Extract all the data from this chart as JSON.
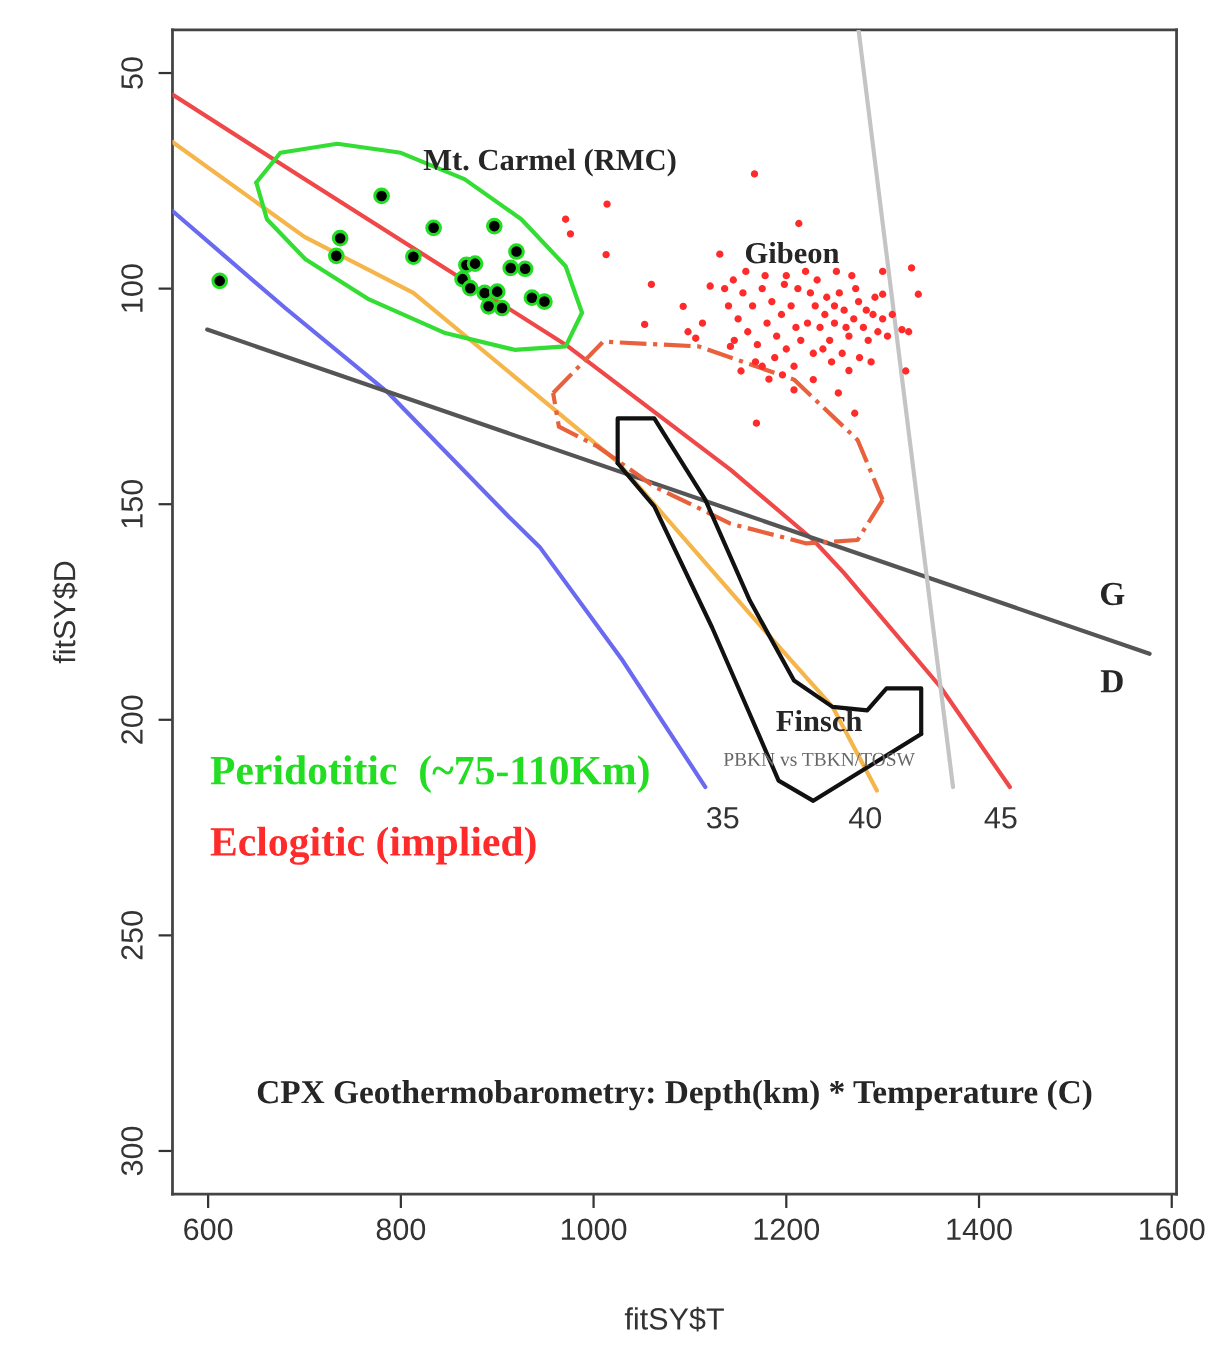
{
  "chart_data": {
    "type": "scatter",
    "xlabel": "fitSY$T",
    "ylabel": "fitSY$D",
    "xlim": [
      563,
      1605
    ],
    "ylim": [
      310,
      40
    ],
    "xticks": [
      600,
      800,
      1000,
      1200,
      1400,
      1600
    ],
    "yticks": [
      50,
      100,
      150,
      200,
      250,
      300
    ],
    "grid": false,
    "legend": "left",
    "series": [
      {
        "name": "Peridotitic  (~75-110Km)",
        "type": "scatter",
        "color": "#22dd22",
        "marker": "circle",
        "x": [
          612,
          780,
          737,
          733,
          834,
          813,
          897,
          920,
          914,
          929,
          868,
          877,
          864,
          872,
          887,
          900,
          891,
          905,
          936,
          949
        ],
        "values": [
          98.2,
          78.5,
          88.3,
          92.4,
          85.9,
          92.6,
          85.5,
          91.4,
          95.2,
          95.4,
          94.5,
          94.2,
          97.8,
          99.9,
          101.0,
          100.7,
          104.1,
          104.5,
          102.1,
          103.0
        ]
      },
      {
        "name": "Eclogitic (implied)",
        "type": "scatter",
        "color": "#ff2a2a",
        "marker": "circle",
        "x": [
          1167,
          1014,
          971,
          976,
          1013,
          1213,
          1131,
          1060,
          1121,
          1093,
          1330,
          1337,
          1300,
          1300,
          1098,
          1106,
          1053,
          1320,
          1327,
          1324,
          1169,
          1271,
          1254,
          1208,
          1228,
          1153,
          1175,
          1113,
          1142,
          1230,
          1240,
          1250,
          1260,
          1270,
          1280,
          1290,
          1245,
          1255,
          1265,
          1275,
          1285,
          1235,
          1225,
          1295,
          1250,
          1262,
          1272,
          1242,
          1283,
          1300,
          1310,
          1238,
          1258,
          1276,
          1222,
          1232,
          1268,
          1252,
          1292,
          1305,
          1215,
          1247,
          1265,
          1288,
          1228,
          1145,
          1155,
          1165,
          1175,
          1185,
          1195,
          1205,
          1150,
          1160,
          1170,
          1180,
          1190,
          1200,
          1210,
          1140,
          1158,
          1178,
          1198,
          1212,
          1168,
          1188,
          1146,
          1136,
          1208,
          1182,
          1196,
          1220,
          1200
        ],
        "values": [
          73.4,
          80.4,
          83.9,
          87.3,
          92.1,
          84.9,
          92.0,
          99.0,
          99.4,
          104.1,
          95.2,
          101.3,
          96.0,
          101.3,
          110.0,
          111.5,
          108.3,
          109.5,
          110.0,
          119.1,
          131.2,
          128.9,
          124.2,
          123.5,
          121.1,
          119.1,
          118.0,
          108.0,
          113.4,
          104,
          106,
          108,
          105,
          107,
          109,
          106,
          112,
          101,
          111,
          103,
          112,
          109,
          101,
          110,
          104,
          109,
          100,
          102,
          105,
          107,
          106,
          114,
          115,
          116,
          108,
          98,
          97,
          96,
          102,
          111,
          112,
          117,
          119,
          117,
          115,
          98,
          101,
          104,
          100,
          103,
          106,
          104,
          107,
          110,
          113,
          108,
          111,
          114,
          109,
          104,
          96,
          97,
          99,
          100,
          117,
          116,
          112,
          100,
          118,
          121,
          120,
          96,
          97
        ]
      },
      {
        "type": "line",
        "color": "#f04848",
        "marker": "none",
        "line_style": "solid",
        "x": [
          563,
          700,
          971,
          1142,
          1228,
          1260,
          1360,
          1432
        ],
        "values": [
          55,
          74.6,
          113,
          142,
          158.3,
          166,
          192.4,
          215.6
        ]
      },
      {
        "type": "line",
        "color": "#f5b54a",
        "marker": "none",
        "line_style": "solid",
        "x": [
          563,
          700,
          813,
          1024,
          1162,
          1248,
          1294
        ],
        "values": [
          66,
          88,
          101,
          140,
          175.4,
          197,
          216.4
        ]
      },
      {
        "type": "line",
        "color": "#6a6af0",
        "marker": "none",
        "line_style": "solid",
        "x": [
          563,
          680,
          787,
          912,
          944,
          1030,
          1116
        ],
        "values": [
          82,
          104.5,
          124.2,
          152.9,
          159.9,
          186.2,
          215.6
        ]
      },
      {
        "type": "line",
        "color": "#555555",
        "marker": "none",
        "line_style": "solid",
        "x": [
          599,
          1577
        ],
        "values": [
          109.5,
          184.7
        ]
      },
      {
        "type": "line",
        "color": "#c4c4c4",
        "marker": "none",
        "line_style": "solid",
        "x": [
          1275,
          1373
        ],
        "values": [
          40,
          215.6
        ]
      },
      {
        "type": "line",
        "color": "#33dd33",
        "marker": "none",
        "line_style": "solid",
        "x": [
          650,
          675,
          734,
          800,
          866,
          925,
          971,
          988
        ],
        "values": [
          75.4,
          68.5,
          66.4,
          68.5,
          74.6,
          83.9,
          94.8,
          105.6
        ]
      },
      {
        "type": "line",
        "color": "#33dd33",
        "marker": "none",
        "line_style": "solid",
        "x": [
          988,
          971,
          918,
          846,
          767,
          701,
          661,
          650
        ],
        "values": [
          105.6,
          113.4,
          114.2,
          110.3,
          102.5,
          93.2,
          83.9,
          75.4
        ]
      },
      {
        "type": "line",
        "color": "#e8603c",
        "marker": "none",
        "line_style": "dashed",
        "x": [
          958,
          1010,
          1109,
          1208,
          1274,
          1300
        ],
        "values": [
          124.2,
          112.3,
          113.4,
          121.1,
          135.1,
          149
        ]
      },
      {
        "type": "line",
        "color": "#e8603c",
        "marker": "none",
        "line_style": "dashed",
        "x": [
          1300,
          1274,
          1221,
          1142,
          1063,
          1004,
          964,
          958
        ],
        "values": [
          149,
          158.3,
          159.1,
          154.5,
          145.9,
          136.6,
          132,
          124.2
        ]
      },
      {
        "type": "line",
        "color": "#111111",
        "marker": "none",
        "line_style": "solid",
        "x": [
          1025,
          1025,
          1063,
          1116,
          1162,
          1208,
          1248,
          1284,
          1304,
          1340,
          1340
        ],
        "values": [
          140.5,
          130.1,
          130.1,
          149.0,
          172.3,
          190.9,
          197.0,
          197.8,
          192.7,
          192.7,
          203.3
        ]
      },
      {
        "type": "line",
        "color": "#111111",
        "marker": "none",
        "line_style": "solid",
        "x": [
          1340,
          1228,
          1192,
          1162,
          1123,
          1063,
          1025
        ],
        "values": [
          203.3,
          218.8,
          214.1,
          198.6,
          178.6,
          150.5,
          140.5
        ]
      }
    ],
    "annotations": [
      "Mt. Carmel (RMC)",
      "Gibeon",
      "Finsch",
      "PBKN vs TBKN/TOSW",
      "G",
      "D",
      "35",
      "40",
      "45",
      "CPX Geothermobarometry: Depth(km) * Temperature (C)"
    ]
  }
}
